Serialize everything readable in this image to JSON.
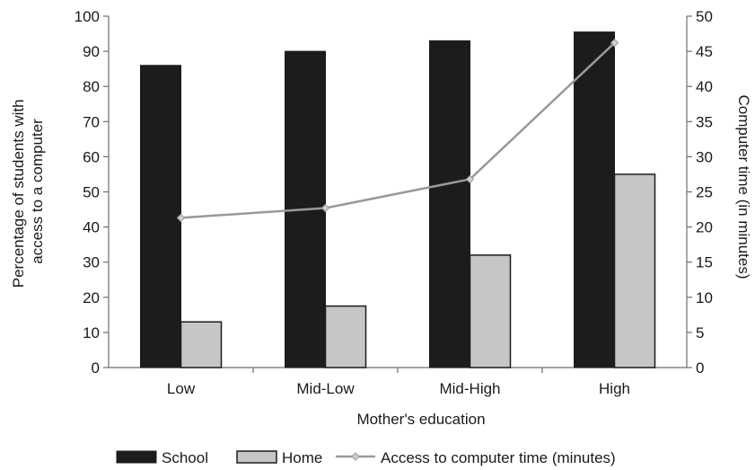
{
  "chart_data": {
    "type": "bar",
    "title": "",
    "xlabel": "Mother's education",
    "ylabel": "Percentage of students with access to a computer",
    "ylabel_lines": [
      "Percentage of students with",
      "access to a computer"
    ],
    "y2label": "Computer time (in minutes)",
    "categories": [
      "Low",
      "Mid-Low",
      "Mid-High",
      "High"
    ],
    "ylim": [
      0,
      100
    ],
    "y2lim": [
      0,
      50
    ],
    "yticks": [
      "0",
      "10",
      "20",
      "30",
      "40",
      "50",
      "60",
      "70",
      "80",
      "90",
      "100"
    ],
    "y2ticks": [
      "0",
      "5",
      "10",
      "15",
      "20",
      "25",
      "30",
      "35",
      "40",
      "45",
      "50"
    ],
    "series": [
      {
        "name": "School",
        "type": "bar",
        "axis": "left",
        "color": "#1c1c1c",
        "values": [
          86,
          90,
          93,
          95.5
        ]
      },
      {
        "name": "Home",
        "type": "bar",
        "axis": "left",
        "color": "#c6c6c6",
        "values": [
          13,
          17.5,
          32,
          55
        ]
      },
      {
        "name": "Access to computer time (minutes)",
        "type": "line",
        "axis": "right",
        "color": "#999999",
        "values": [
          21.3,
          22.7,
          26.8,
          46.2
        ]
      }
    ],
    "legend": {
      "position": "bottom",
      "items": [
        "School",
        "Home",
        "Access to computer time (minutes)"
      ]
    },
    "grid": false
  }
}
